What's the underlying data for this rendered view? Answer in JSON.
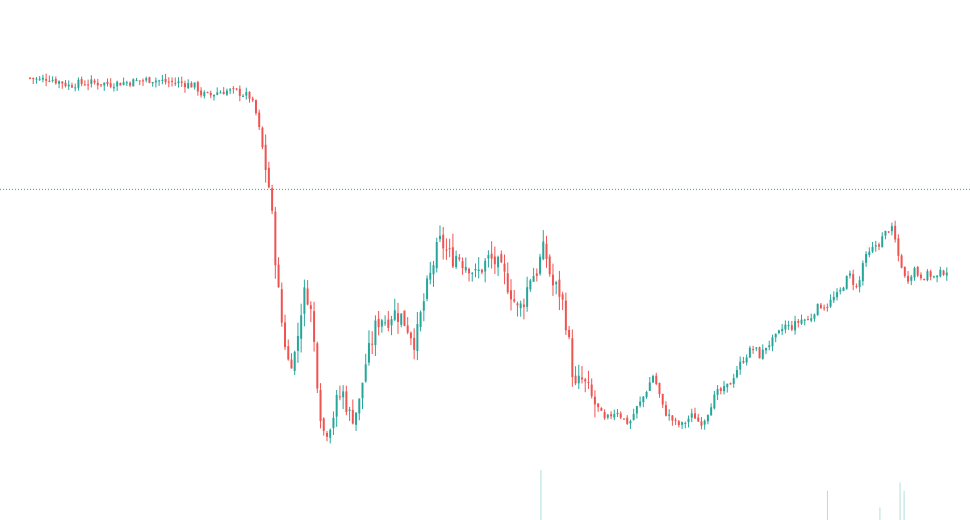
{
  "chart_data": {
    "type": "candlestick",
    "title": "",
    "xlabel": "",
    "ylabel": "",
    "ylim": [
      0,
      100
    ],
    "grid": false,
    "legend": "none",
    "last_price_line": 66.5,
    "price_path": [
      [
        0,
        91.5
      ],
      [
        10,
        91.0
      ],
      [
        18,
        91.6
      ],
      [
        25,
        90.9
      ],
      [
        32,
        90.5
      ],
      [
        38,
        89.8
      ],
      [
        45,
        90.2
      ],
      [
        60,
        90.4
      ],
      [
        80,
        90.2
      ],
      [
        100,
        90.6
      ],
      [
        110,
        90.9
      ],
      [
        120,
        91.2
      ],
      [
        135,
        90.6
      ],
      [
        150,
        90.4
      ],
      [
        160,
        89.9
      ],
      [
        165,
        89.5
      ],
      [
        170,
        87.8
      ],
      [
        178,
        87.5
      ],
      [
        185,
        88.3
      ],
      [
        195,
        88.6
      ],
      [
        205,
        88.4
      ],
      [
        212,
        87.8
      ],
      [
        218,
        87.2
      ],
      [
        222,
        85.0
      ],
      [
        226,
        82.0
      ],
      [
        228,
        78.5
      ],
      [
        230,
        76.0
      ],
      [
        233,
        72.0
      ],
      [
        236,
        69.0
      ],
      [
        240,
        60.0
      ],
      [
        243,
        52.0
      ],
      [
        246,
        44.0
      ],
      [
        250,
        36.0
      ],
      [
        253,
        32.0
      ],
      [
        256,
        28.0
      ],
      [
        262,
        29.0
      ],
      [
        266,
        34.5
      ],
      [
        270,
        42.0
      ],
      [
        274,
        44.0
      ],
      [
        278,
        40.0
      ],
      [
        282,
        31.0
      ],
      [
        286,
        21.0
      ],
      [
        290,
        12.0
      ],
      [
        295,
        13.0
      ],
      [
        300,
        15.5
      ],
      [
        305,
        19.5
      ],
      [
        310,
        21.0
      ],
      [
        318,
        15.0
      ],
      [
        326,
        18.0
      ],
      [
        332,
        27.0
      ],
      [
        338,
        31.5
      ],
      [
        343,
        36.0
      ],
      [
        348,
        38.0
      ],
      [
        353,
        37.0
      ],
      [
        360,
        39.0
      ],
      [
        368,
        38.0
      ],
      [
        376,
        35.0
      ],
      [
        382,
        32.0
      ],
      [
        388,
        39.0
      ],
      [
        393,
        44.0
      ],
      [
        398,
        48.0
      ],
      [
        402,
        52.0
      ],
      [
        407,
        55.0
      ],
      [
        412,
        53.0
      ],
      [
        418,
        51.0
      ],
      [
        424,
        52.0
      ],
      [
        430,
        50.0
      ],
      [
        436,
        49.5
      ],
      [
        442,
        47.0
      ],
      [
        448,
        49.0
      ],
      [
        455,
        51.0
      ],
      [
        462,
        50.0
      ],
      [
        470,
        47.0
      ],
      [
        476,
        44.0
      ],
      [
        480,
        41.5
      ],
      [
        484,
        39.0
      ],
      [
        490,
        42.0
      ],
      [
        496,
        47.0
      ],
      [
        502,
        48.0
      ],
      [
        506,
        51.0
      ],
      [
        510,
        53.5
      ],
      [
        514,
        49.0
      ],
      [
        518,
        45.0
      ],
      [
        524,
        44.0
      ],
      [
        528,
        41.0
      ],
      [
        532,
        36.0
      ],
      [
        536,
        29.0
      ],
      [
        540,
        21.5
      ],
      [
        546,
        24.0
      ],
      [
        552,
        22.0
      ],
      [
        558,
        19.0
      ],
      [
        564,
        17.0
      ],
      [
        570,
        14.5
      ],
      [
        576,
        16.0
      ],
      [
        582,
        17.0
      ],
      [
        588,
        15.0
      ],
      [
        594,
        14.0
      ],
      [
        600,
        17.0
      ],
      [
        606,
        19.0
      ],
      [
        612,
        22.0
      ],
      [
        618,
        25.0
      ],
      [
        622,
        22.0
      ],
      [
        628,
        17.0
      ],
      [
        634,
        15.5
      ],
      [
        640,
        14.0
      ],
      [
        646,
        13.5
      ],
      [
        652,
        15.0
      ],
      [
        658,
        16.0
      ],
      [
        664,
        14.0
      ],
      [
        670,
        15.5
      ],
      [
        676,
        19.0
      ],
      [
        682,
        21.0
      ],
      [
        688,
        21.5
      ],
      [
        694,
        23.0
      ],
      [
        700,
        26.0
      ],
      [
        706,
        28.0
      ],
      [
        712,
        30.0
      ],
      [
        718,
        31.0
      ],
      [
        724,
        29.0
      ],
      [
        730,
        31.5
      ],
      [
        736,
        32.5
      ],
      [
        742,
        34.0
      ],
      [
        748,
        36.0
      ],
      [
        754,
        35.5
      ],
      [
        760,
        36.5
      ],
      [
        766,
        37.5
      ],
      [
        772,
        37.0
      ],
      [
        778,
        39.5
      ],
      [
        784,
        40.5
      ],
      [
        790,
        40.5
      ],
      [
        796,
        42.0
      ],
      [
        802,
        43.0
      ],
      [
        808,
        46.0
      ],
      [
        814,
        47.5
      ],
      [
        818,
        44.0
      ],
      [
        822,
        45.5
      ],
      [
        826,
        50.5
      ],
      [
        832,
        52.0
      ],
      [
        838,
        54.0
      ],
      [
        842,
        54.5
      ],
      [
        846,
        56.0
      ],
      [
        852,
        58.0
      ],
      [
        856,
        57.0
      ],
      [
        860,
        52.0
      ],
      [
        864,
        49.5
      ],
      [
        868,
        46.0
      ],
      [
        872,
        47.0
      ],
      [
        876,
        49.0
      ],
      [
        880,
        47.5
      ],
      [
        886,
        47.0
      ],
      [
        892,
        47.5
      ],
      [
        898,
        46.5
      ],
      [
        904,
        48.0
      ],
      [
        910,
        48.5
      ]
    ],
    "volume_spikes": [
      [
        506,
        12
      ],
      [
        790,
        7
      ],
      [
        842,
        3
      ],
      [
        862,
        9
      ],
      [
        866,
        7
      ]
    ],
    "colors": {
      "up": "#26a69a",
      "down": "#ef5350",
      "volume": "#b2dfdb",
      "price_line": "#26a69a",
      "background": "#ffffff"
    }
  }
}
